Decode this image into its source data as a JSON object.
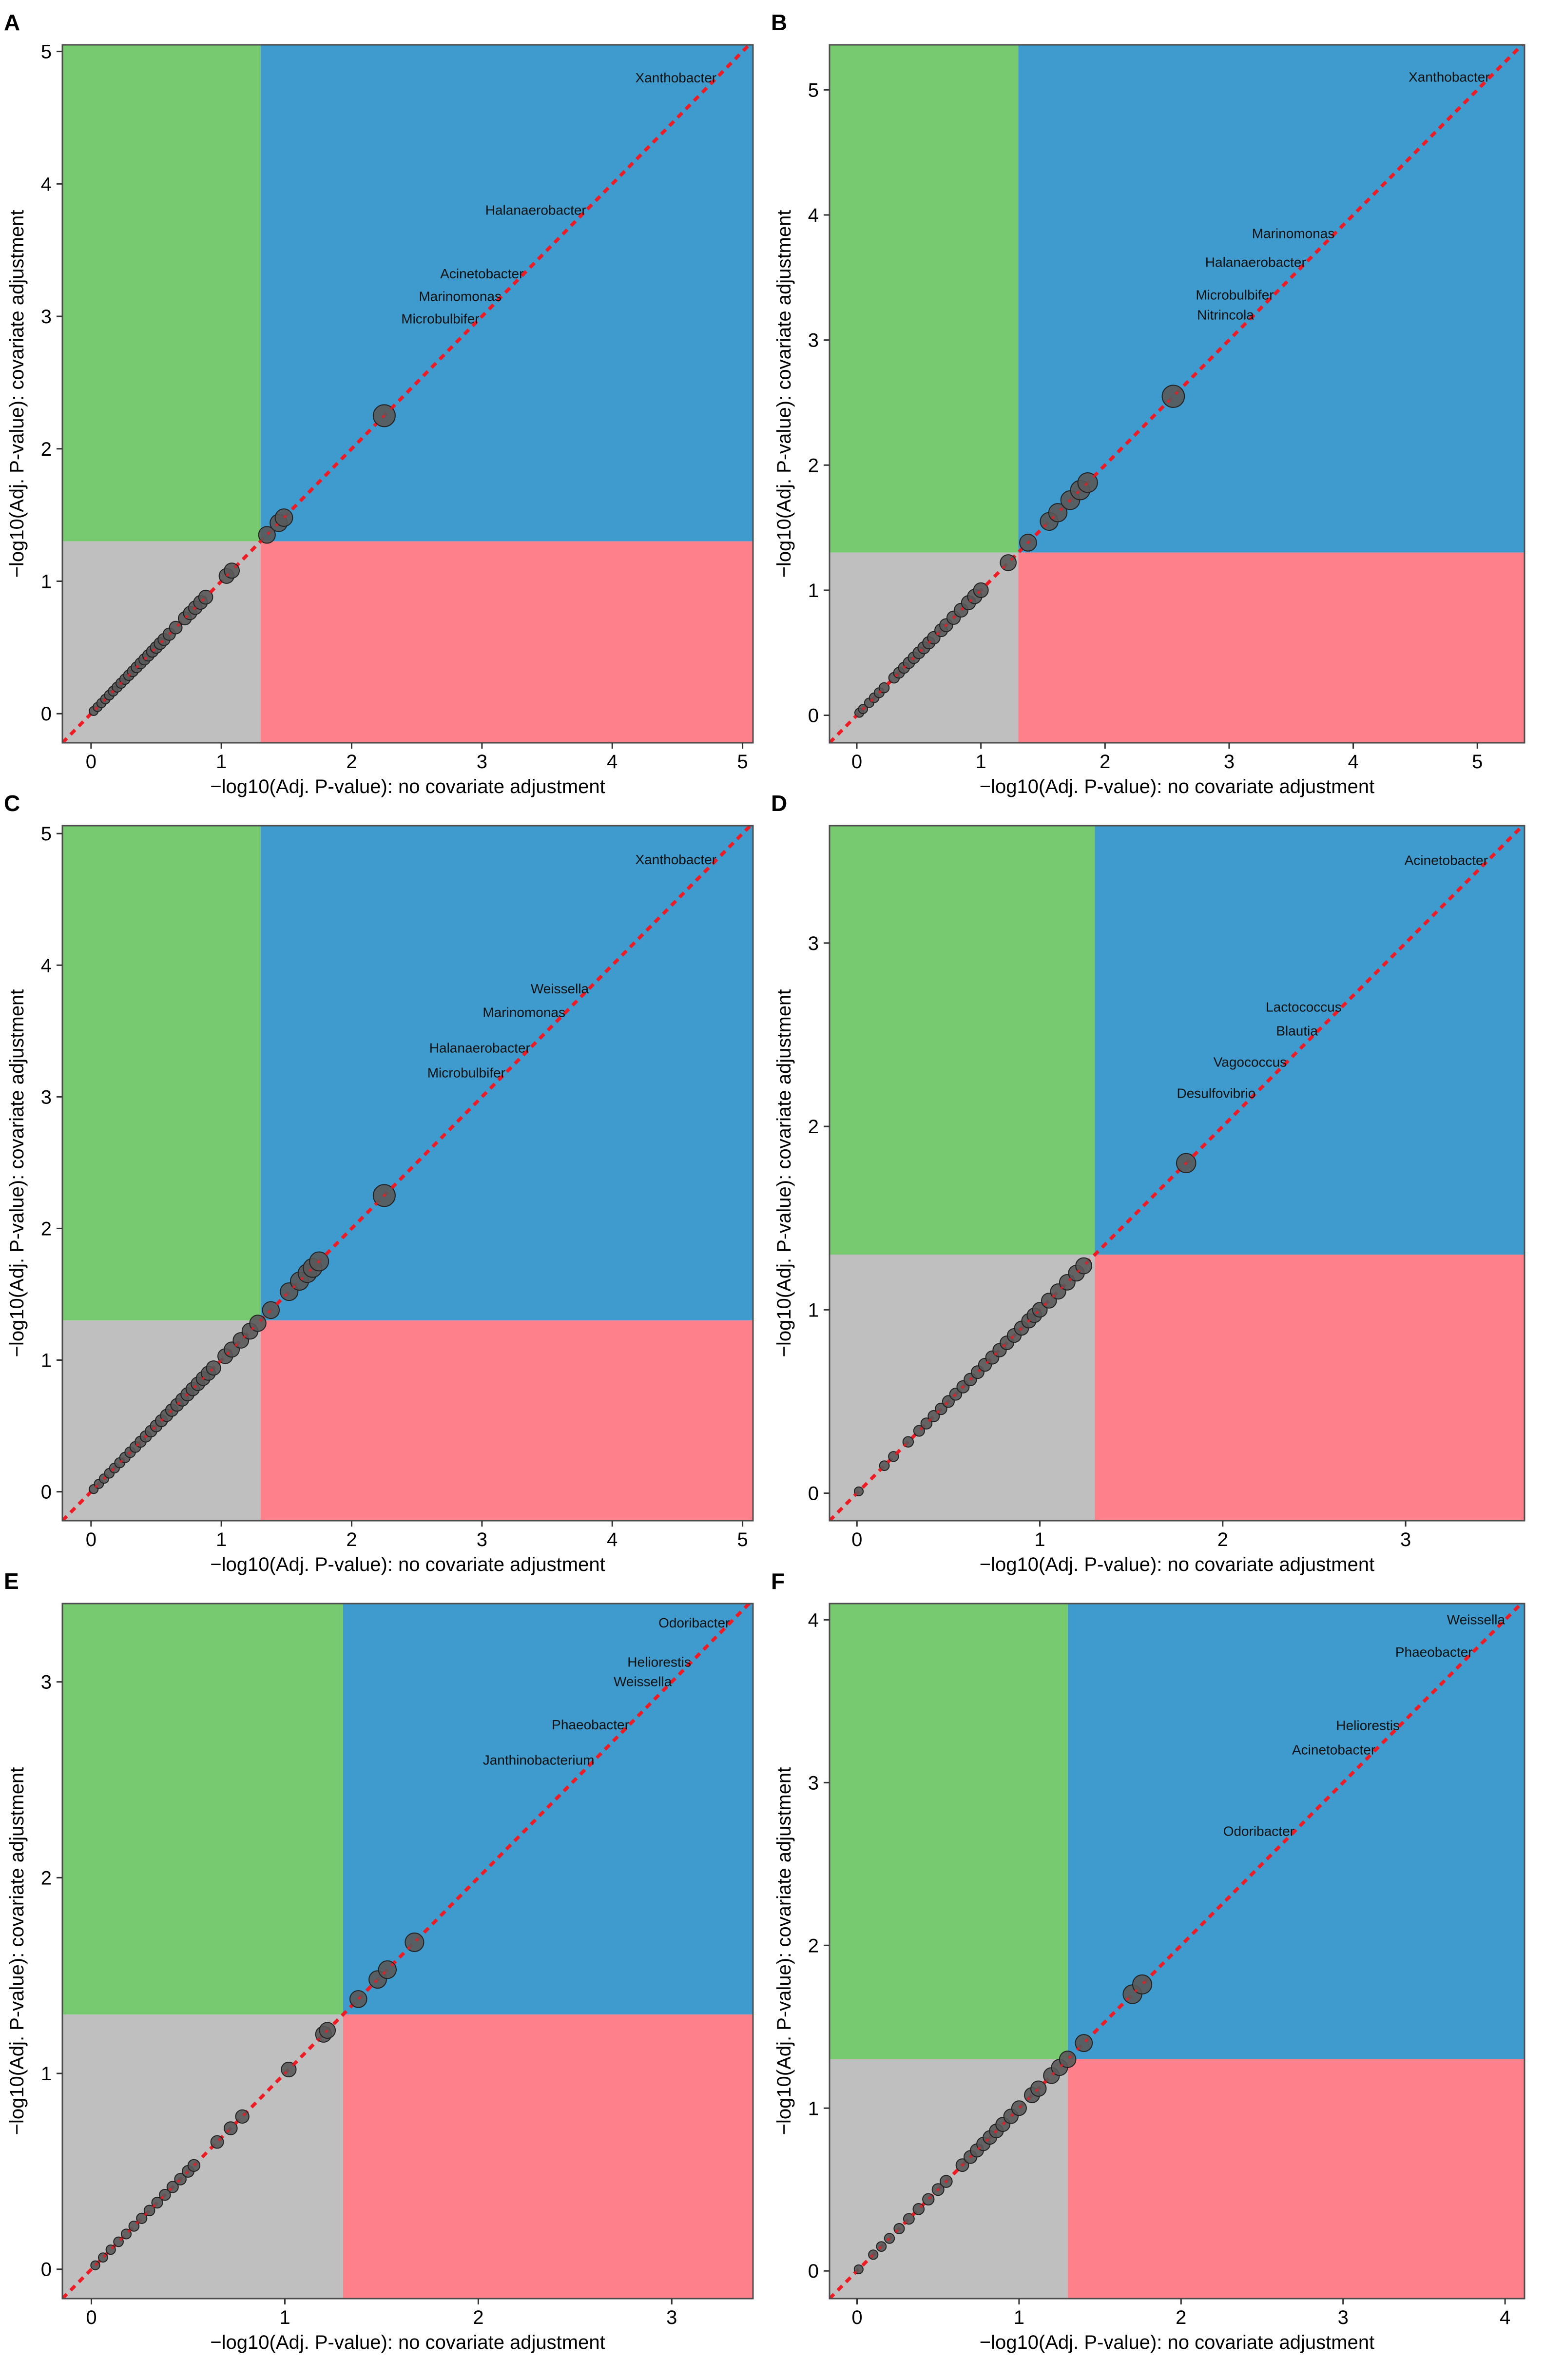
{
  "figure": {
    "colors": {
      "green": "#77CA6F",
      "blue": "#3F9ACD",
      "gray": "#BFBFBF",
      "red": "#FD808A",
      "dots": "#595959",
      "diagonal": "#EE1C25"
    }
  },
  "chart_data": [
    {
      "panel": "A",
      "type": "scatter",
      "xlabel": "−log10(Adj. P-value): no covariate adjustment",
      "ylabel": "−log10(Adj. P-value): covariate adjustment",
      "xlim": [
        -0.22,
        5.08
      ],
      "ylim": [
        -0.22,
        5.05
      ],
      "xticks": [
        0,
        1,
        2,
        3,
        4,
        5
      ],
      "yticks": [
        0,
        1,
        2,
        3,
        4,
        5
      ],
      "threshold": 1.301,
      "points": [
        [
          0.02,
          0.02
        ],
        [
          0.05,
          0.05
        ],
        [
          0.08,
          0.08
        ],
        [
          0.11,
          0.11
        ],
        [
          0.14,
          0.14
        ],
        [
          0.17,
          0.17
        ],
        [
          0.2,
          0.2
        ],
        [
          0.23,
          0.23
        ],
        [
          0.26,
          0.26
        ],
        [
          0.29,
          0.29
        ],
        [
          0.32,
          0.32
        ],
        [
          0.35,
          0.35
        ],
        [
          0.38,
          0.38
        ],
        [
          0.41,
          0.41
        ],
        [
          0.44,
          0.44
        ],
        [
          0.47,
          0.47
        ],
        [
          0.5,
          0.5
        ],
        [
          0.53,
          0.53
        ],
        [
          0.56,
          0.56
        ],
        [
          0.6,
          0.6
        ],
        [
          0.65,
          0.65
        ],
        [
          0.72,
          0.72
        ],
        [
          0.76,
          0.76
        ],
        [
          0.8,
          0.8
        ],
        [
          0.84,
          0.84
        ],
        [
          0.88,
          0.88
        ],
        [
          1.04,
          1.04
        ],
        [
          1.08,
          1.08
        ],
        [
          1.35,
          1.35
        ],
        [
          1.44,
          1.44
        ],
        [
          1.48,
          1.48
        ],
        [
          2.25,
          2.25
        ]
      ],
      "labels": [
        {
          "text": "Xanthobacter",
          "x": 4.8,
          "y": 4.8
        },
        {
          "text": "Halanaerobacter",
          "x": 3.8,
          "y": 3.8
        },
        {
          "text": "Acinetobacter",
          "x": 3.32,
          "y": 3.32
        },
        {
          "text": "Marinomonas",
          "x": 3.15,
          "y": 3.15
        },
        {
          "text": "Microbulbifer",
          "x": 2.98,
          "y": 2.98
        }
      ]
    },
    {
      "panel": "B",
      "type": "scatter",
      "xlabel": "−log10(Adj. P-value): no covariate adjustment",
      "ylabel": "−log10(Adj. P-value): covariate adjustment",
      "xlim": [
        -0.22,
        5.38
      ],
      "ylim": [
        -0.22,
        5.36
      ],
      "xticks": [
        0,
        1,
        2,
        3,
        4,
        5
      ],
      "yticks": [
        0,
        1,
        2,
        3,
        4,
        5
      ],
      "threshold": 1.301,
      "points": [
        [
          0.02,
          0.02
        ],
        [
          0.05,
          0.05
        ],
        [
          0.1,
          0.1
        ],
        [
          0.14,
          0.14
        ],
        [
          0.18,
          0.18
        ],
        [
          0.22,
          0.22
        ],
        [
          0.3,
          0.3
        ],
        [
          0.34,
          0.34
        ],
        [
          0.38,
          0.38
        ],
        [
          0.42,
          0.42
        ],
        [
          0.46,
          0.46
        ],
        [
          0.5,
          0.5
        ],
        [
          0.54,
          0.54
        ],
        [
          0.58,
          0.58
        ],
        [
          0.62,
          0.62
        ],
        [
          0.68,
          0.68
        ],
        [
          0.72,
          0.72
        ],
        [
          0.78,
          0.78
        ],
        [
          0.84,
          0.84
        ],
        [
          0.9,
          0.9
        ],
        [
          0.95,
          0.95
        ],
        [
          1.0,
          1.0
        ],
        [
          1.22,
          1.22
        ],
        [
          1.38,
          1.38
        ],
        [
          1.55,
          1.55
        ],
        [
          1.62,
          1.62
        ],
        [
          1.72,
          1.72
        ],
        [
          1.8,
          1.8
        ],
        [
          1.86,
          1.86
        ],
        [
          2.55,
          2.55
        ]
      ],
      "labels": [
        {
          "text": "Xanthobacter",
          "x": 5.1,
          "y": 5.1
        },
        {
          "text": "Marinomonas",
          "x": 3.85,
          "y": 3.85
        },
        {
          "text": "Halanaerobacter",
          "x": 3.62,
          "y": 3.62
        },
        {
          "text": "Microbulbifer",
          "x": 3.36,
          "y": 3.36
        },
        {
          "text": "Nitrincola",
          "x": 3.2,
          "y": 3.2
        }
      ]
    },
    {
      "panel": "C",
      "type": "scatter",
      "xlabel": "−log10(Adj. P-value): no covariate adjustment",
      "ylabel": "−log10(Adj. P-value): covariate adjustment",
      "xlim": [
        -0.22,
        5.08
      ],
      "ylim": [
        -0.22,
        5.06
      ],
      "xticks": [
        0,
        1,
        2,
        3,
        4,
        5
      ],
      "yticks": [
        0,
        1,
        2,
        3,
        4,
        5
      ],
      "threshold": 1.301,
      "points": [
        [
          0.02,
          0.02
        ],
        [
          0.06,
          0.06
        ],
        [
          0.1,
          0.1
        ],
        [
          0.14,
          0.14
        ],
        [
          0.18,
          0.18
        ],
        [
          0.22,
          0.22
        ],
        [
          0.26,
          0.26
        ],
        [
          0.3,
          0.3
        ],
        [
          0.34,
          0.34
        ],
        [
          0.38,
          0.38
        ],
        [
          0.42,
          0.42
        ],
        [
          0.46,
          0.46
        ],
        [
          0.5,
          0.5
        ],
        [
          0.54,
          0.54
        ],
        [
          0.58,
          0.58
        ],
        [
          0.62,
          0.62
        ],
        [
          0.66,
          0.66
        ],
        [
          0.7,
          0.7
        ],
        [
          0.74,
          0.74
        ],
        [
          0.78,
          0.78
        ],
        [
          0.82,
          0.82
        ],
        [
          0.86,
          0.86
        ],
        [
          0.9,
          0.9
        ],
        [
          0.94,
          0.94
        ],
        [
          1.03,
          1.03
        ],
        [
          1.08,
          1.08
        ],
        [
          1.15,
          1.15
        ],
        [
          1.22,
          1.22
        ],
        [
          1.28,
          1.28
        ],
        [
          1.38,
          1.38
        ],
        [
          1.52,
          1.52
        ],
        [
          1.6,
          1.6
        ],
        [
          1.66,
          1.66
        ],
        [
          1.7,
          1.7
        ],
        [
          1.75,
          1.75
        ],
        [
          2.25,
          2.25
        ]
      ],
      "labels": [
        {
          "text": "Xanthobacter",
          "x": 4.8,
          "y": 4.8
        },
        {
          "text": "Weissella",
          "x": 3.82,
          "y": 3.82
        },
        {
          "text": "Marinomonas",
          "x": 3.64,
          "y": 3.64
        },
        {
          "text": "Halanaerobacter",
          "x": 3.37,
          "y": 3.37
        },
        {
          "text": "Microbulbifer",
          "x": 3.18,
          "y": 3.18
        }
      ]
    },
    {
      "panel": "D",
      "type": "scatter",
      "xlabel": "−log10(Adj. P-value): no covariate adjustment",
      "ylabel": "−log10(Adj. P-value): covariate adjustment",
      "xlim": [
        -0.15,
        3.65
      ],
      "ylim": [
        -0.15,
        3.64
      ],
      "xticks": [
        0,
        1,
        2,
        3
      ],
      "yticks": [
        0,
        1,
        2,
        3
      ],
      "threshold": 1.301,
      "points": [
        [
          0.01,
          0.01
        ],
        [
          0.15,
          0.15
        ],
        [
          0.2,
          0.2
        ],
        [
          0.28,
          0.28
        ],
        [
          0.34,
          0.34
        ],
        [
          0.38,
          0.38
        ],
        [
          0.42,
          0.42
        ],
        [
          0.46,
          0.46
        ],
        [
          0.5,
          0.5
        ],
        [
          0.54,
          0.54
        ],
        [
          0.58,
          0.58
        ],
        [
          0.62,
          0.62
        ],
        [
          0.66,
          0.66
        ],
        [
          0.7,
          0.7
        ],
        [
          0.74,
          0.74
        ],
        [
          0.78,
          0.78
        ],
        [
          0.82,
          0.82
        ],
        [
          0.86,
          0.86
        ],
        [
          0.9,
          0.9
        ],
        [
          0.94,
          0.94
        ],
        [
          0.97,
          0.97
        ],
        [
          1.0,
          1.0
        ],
        [
          1.05,
          1.05
        ],
        [
          1.1,
          1.1
        ],
        [
          1.15,
          1.15
        ],
        [
          1.2,
          1.2
        ],
        [
          1.24,
          1.24
        ],
        [
          1.8,
          1.8
        ]
      ],
      "labels": [
        {
          "text": "Acinetobacter",
          "x": 3.45,
          "y": 3.45
        },
        {
          "text": "Lactococcus",
          "x": 2.65,
          "y": 2.65
        },
        {
          "text": "Blautia",
          "x": 2.52,
          "y": 2.52
        },
        {
          "text": "Vagococcus",
          "x": 2.35,
          "y": 2.35
        },
        {
          "text": "Desulfovibrio",
          "x": 2.18,
          "y": 2.18
        }
      ]
    },
    {
      "panel": "E",
      "type": "scatter",
      "xlabel": "−log10(Adj. P-value): no covariate adjustment",
      "ylabel": "−log10(Adj. P-value): covariate adjustment",
      "xlim": [
        -0.15,
        3.42
      ],
      "ylim": [
        -0.15,
        3.4
      ],
      "xticks": [
        0,
        1,
        2,
        3
      ],
      "yticks": [
        0,
        1,
        2,
        3
      ],
      "threshold": 1.301,
      "points": [
        [
          0.02,
          0.02
        ],
        [
          0.06,
          0.06
        ],
        [
          0.1,
          0.1
        ],
        [
          0.14,
          0.14
        ],
        [
          0.18,
          0.18
        ],
        [
          0.22,
          0.22
        ],
        [
          0.26,
          0.26
        ],
        [
          0.3,
          0.3
        ],
        [
          0.34,
          0.34
        ],
        [
          0.38,
          0.38
        ],
        [
          0.42,
          0.42
        ],
        [
          0.46,
          0.46
        ],
        [
          0.5,
          0.5
        ],
        [
          0.53,
          0.53
        ],
        [
          0.65,
          0.65
        ],
        [
          0.72,
          0.72
        ],
        [
          0.78,
          0.78
        ],
        [
          1.02,
          1.02
        ],
        [
          1.2,
          1.2
        ],
        [
          1.22,
          1.22
        ],
        [
          1.38,
          1.38
        ],
        [
          1.48,
          1.48
        ],
        [
          1.53,
          1.53
        ],
        [
          1.67,
          1.67
        ]
      ],
      "labels": [
        {
          "text": "Odoribacter",
          "x": 3.3,
          "y": 3.3
        },
        {
          "text": "Heliorestis",
          "x": 3.1,
          "y": 3.1
        },
        {
          "text": "Weissella",
          "x": 3.0,
          "y": 3.0
        },
        {
          "text": "Phaeobacter",
          "x": 2.78,
          "y": 2.78
        },
        {
          "text": "Janthinobacterium",
          "x": 2.6,
          "y": 2.6
        }
      ]
    },
    {
      "panel": "F",
      "type": "scatter",
      "xlabel": "−log10(Adj. P-value): no covariate adjustment",
      "ylabel": "−log10(Adj. P-value): covariate adjustment",
      "xlim": [
        -0.17,
        4.12
      ],
      "ylim": [
        -0.17,
        4.1
      ],
      "xticks": [
        0,
        1,
        2,
        3,
        4
      ],
      "yticks": [
        0,
        1,
        2,
        3,
        4
      ],
      "threshold": 1.301,
      "points": [
        [
          0.01,
          0.01
        ],
        [
          0.1,
          0.1
        ],
        [
          0.15,
          0.15
        ],
        [
          0.2,
          0.2
        ],
        [
          0.26,
          0.26
        ],
        [
          0.32,
          0.32
        ],
        [
          0.38,
          0.38
        ],
        [
          0.44,
          0.44
        ],
        [
          0.5,
          0.5
        ],
        [
          0.55,
          0.55
        ],
        [
          0.65,
          0.65
        ],
        [
          0.7,
          0.7
        ],
        [
          0.74,
          0.74
        ],
        [
          0.78,
          0.78
        ],
        [
          0.82,
          0.82
        ],
        [
          0.86,
          0.86
        ],
        [
          0.9,
          0.9
        ],
        [
          0.95,
          0.95
        ],
        [
          1.0,
          1.0
        ],
        [
          1.08,
          1.08
        ],
        [
          1.12,
          1.12
        ],
        [
          1.2,
          1.2
        ],
        [
          1.25,
          1.25
        ],
        [
          1.3,
          1.3
        ],
        [
          1.4,
          1.4
        ],
        [
          1.7,
          1.7
        ],
        [
          1.76,
          1.76
        ]
      ],
      "labels": [
        {
          "text": "Weissella",
          "x": 4.0,
          "y": 4.0
        },
        {
          "text": "Phaeobacter",
          "x": 3.8,
          "y": 3.8
        },
        {
          "text": "Heliorestis",
          "x": 3.35,
          "y": 3.35
        },
        {
          "text": "Acinetobacter",
          "x": 3.2,
          "y": 3.2
        },
        {
          "text": "Odoribacter",
          "x": 2.7,
          "y": 2.7
        }
      ]
    }
  ]
}
